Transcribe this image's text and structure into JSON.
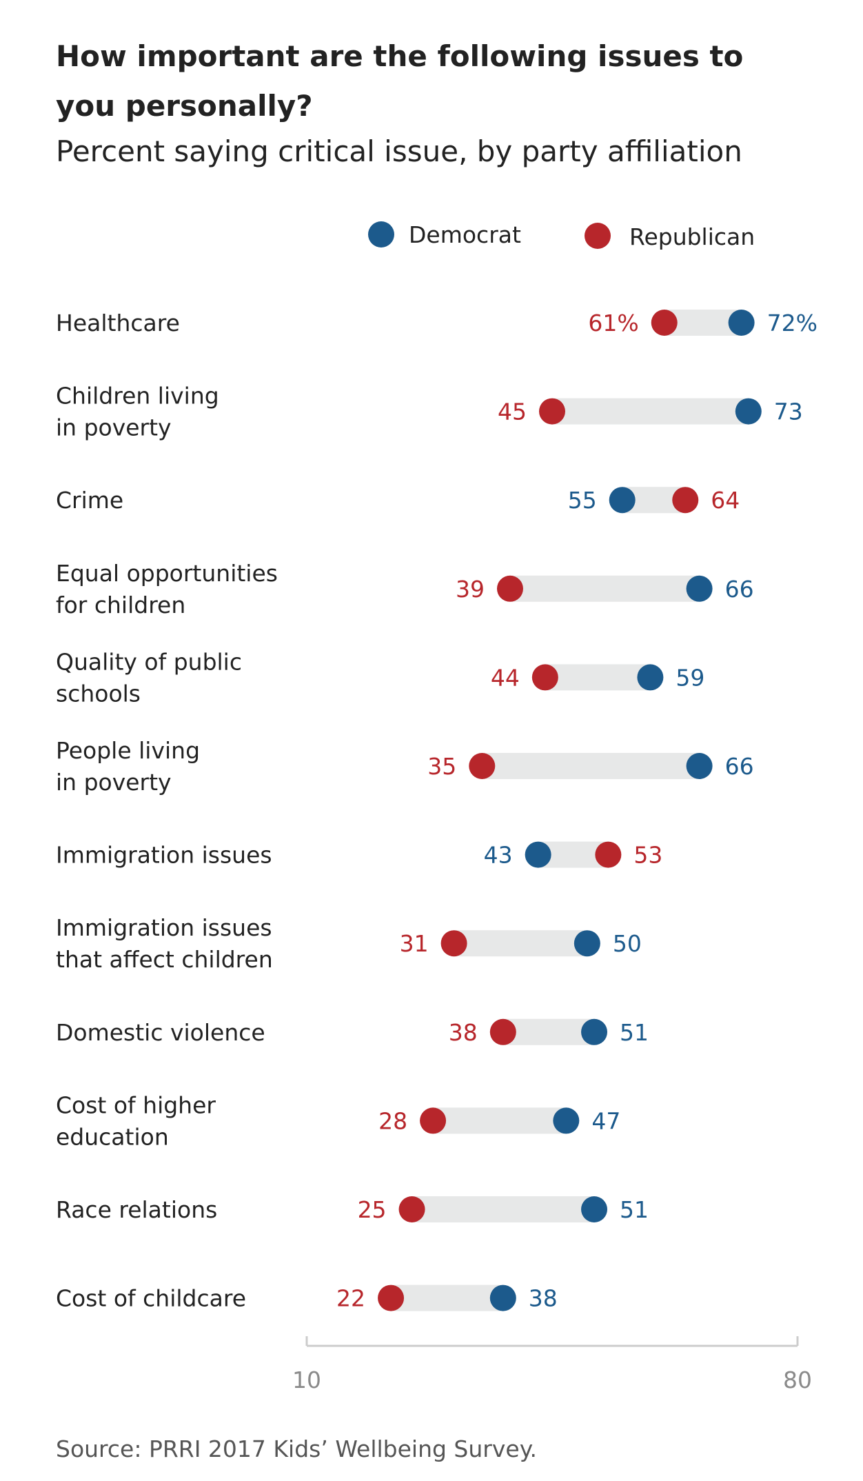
{
  "colors": {
    "democrat": "#1c5a8c",
    "republican": "#b7262b",
    "connector": "#e7e8e8",
    "axis": "#cccccc",
    "tick_text": "#8a8a8a"
  },
  "chart_data": {
    "type": "dumbbell",
    "title": "How important are the following issues to you personally?",
    "subtitle": "Percent saying critical issue, by party affiliation",
    "source": "Source: PRRI 2017 Kids’ Wellbeing Survey.",
    "xlim": [
      10,
      80
    ],
    "xticks": [
      10,
      80
    ],
    "grid": false,
    "legend_position": "top",
    "series": [
      {
        "key": "democrat",
        "name": "Democrat",
        "color": "#1c5a8c"
      },
      {
        "key": "republican",
        "name": "Republican",
        "color": "#b7262b"
      }
    ],
    "unit_suffix": "%",
    "suffix_on_first_row_only": true,
    "rows": [
      {
        "category": [
          "Healthcare"
        ],
        "democrat": 72,
        "republican": 61
      },
      {
        "category": [
          "Children living",
          "in poverty"
        ],
        "democrat": 73,
        "republican": 45
      },
      {
        "category": [
          "Crime"
        ],
        "democrat": 55,
        "republican": 64
      },
      {
        "category": [
          "Equal opportunities",
          "for children"
        ],
        "democrat": 66,
        "republican": 39
      },
      {
        "category": [
          "Quality of public",
          "schools"
        ],
        "democrat": 59,
        "republican": 44
      },
      {
        "category": [
          "People living",
          "in poverty"
        ],
        "democrat": 66,
        "republican": 35
      },
      {
        "category": [
          "Immigration issues"
        ],
        "democrat": 43,
        "republican": 53
      },
      {
        "category": [
          "Immigration issues",
          "that affect children"
        ],
        "democrat": 50,
        "republican": 31
      },
      {
        "category": [
          "Domestic violence"
        ],
        "democrat": 51,
        "republican": 38
      },
      {
        "category": [
          "Cost of higher",
          "education"
        ],
        "democrat": 47,
        "republican": 28
      },
      {
        "category": [
          "Race relations"
        ],
        "democrat": 51,
        "republican": 25
      },
      {
        "category": [
          "Cost of childcare"
        ],
        "democrat": 38,
        "republican": 22
      }
    ]
  }
}
